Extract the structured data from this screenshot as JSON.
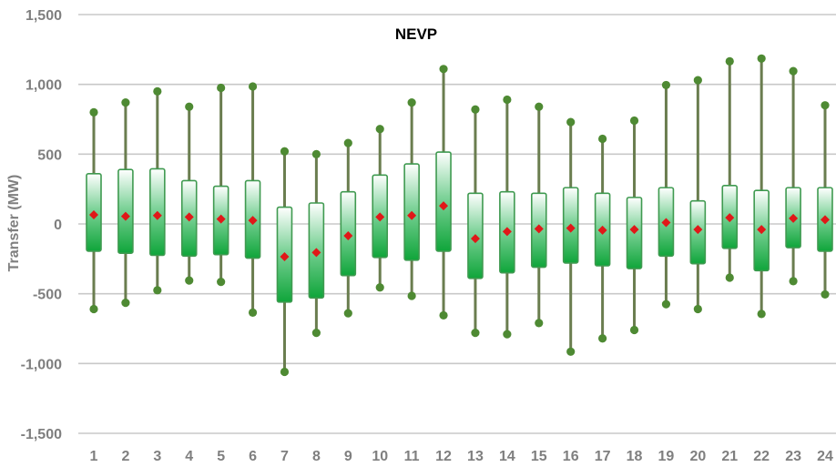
{
  "chart_data": {
    "type": "box",
    "title": "NEVP",
    "xlabel": "",
    "ylabel": "Transfer (MW)",
    "ylim": [
      -1500,
      1500
    ],
    "yticks": [
      -1500,
      -1000,
      -500,
      0,
      500,
      1000,
      1500
    ],
    "ytick_labels": [
      "-1,500",
      "-1,000",
      "-500",
      "0",
      "500",
      "1,000",
      "1,500"
    ],
    "grid": true,
    "legend": "none",
    "categories": [
      "1",
      "2",
      "3",
      "4",
      "5",
      "6",
      "7",
      "8",
      "9",
      "10",
      "11",
      "12",
      "13",
      "14",
      "15",
      "16",
      "17",
      "18",
      "19",
      "20",
      "21",
      "22",
      "23",
      "24"
    ],
    "series": [
      {
        "box_top": [
          360,
          390,
          395,
          310,
          270,
          310,
          120,
          150,
          230,
          350,
          430,
          515,
          220,
          230,
          220,
          260,
          220,
          190,
          260,
          165,
          275,
          240,
          260,
          260
        ],
        "box_bottom": [
          -195,
          -210,
          -225,
          -230,
          -220,
          -245,
          -560,
          -530,
          -370,
          -240,
          -260,
          -195,
          -390,
          -350,
          -310,
          -280,
          -300,
          -320,
          -230,
          -285,
          -175,
          -335,
          -170,
          -195
        ],
        "max": [
          800,
          870,
          950,
          840,
          975,
          985,
          520,
          500,
          580,
          680,
          870,
          1110,
          820,
          890,
          840,
          730,
          610,
          740,
          995,
          1030,
          1165,
          1185,
          1095,
          850
        ],
        "min": [
          -610,
          -565,
          -475,
          -405,
          -415,
          -635,
          -1060,
          -780,
          -640,
          -455,
          -515,
          -655,
          -780,
          -790,
          -710,
          -915,
          -820,
          -760,
          -575,
          -610,
          -385,
          -645,
          -410,
          -505
        ],
        "mean": [
          65,
          55,
          60,
          50,
          35,
          25,
          -235,
          -205,
          -85,
          50,
          60,
          130,
          -105,
          -55,
          -35,
          -30,
          -45,
          -40,
          10,
          -40,
          45,
          -40,
          40,
          30
        ]
      }
    ],
    "colors": {
      "box_top": "#ffffff",
      "box_bottom": "#12a63a",
      "box_border": "#3f9a50",
      "whisker": "#6a7d4f",
      "extreme_marker": "#4e8a33",
      "mean_marker": "#e01818",
      "grid": "#c8c8c8",
      "tick_text": "#7f7f7f"
    }
  }
}
